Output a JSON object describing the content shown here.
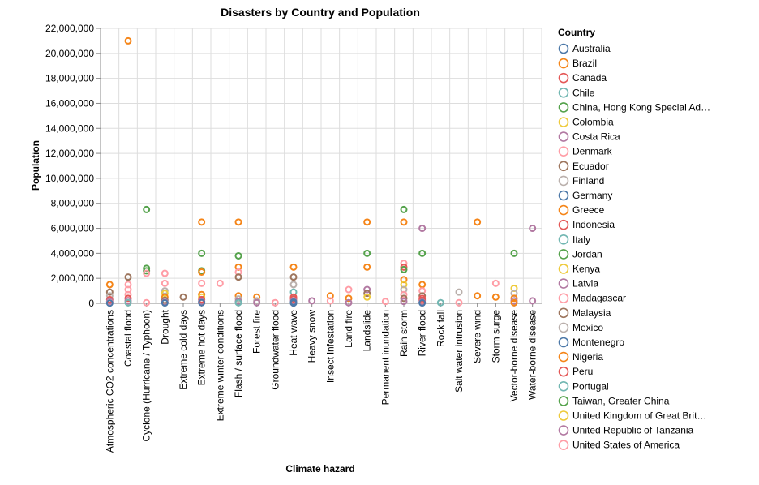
{
  "chart_data": {
    "type": "scatter",
    "title": "Disasters by Country and Population",
    "xlabel": "Climate hazard",
    "ylabel": "Population",
    "ylim": [
      0,
      22000000
    ],
    "y_ticks": [
      0,
      2000000,
      4000000,
      6000000,
      8000000,
      10000000,
      12000000,
      14000000,
      16000000,
      18000000,
      20000000,
      22000000
    ],
    "y_tick_labels": [
      "0",
      "2,000,000",
      "4,000,000",
      "6,000,000",
      "8,000,000",
      "10,000,000",
      "12,000,000",
      "14,000,000",
      "16,000,000",
      "18,000,000",
      "20,000,000",
      "22,000,000"
    ],
    "grid": true,
    "legend_position": "right",
    "legend_title": "Country",
    "categories": [
      "Atmospheric CO2 concentrations",
      "Coastal flood",
      "Cyclone (Hurricane / Typhoon)",
      "Drought",
      "Extreme cold days",
      "Extreme hot days",
      "Extreme winter conditions",
      "Flash / surface flood",
      "Forest fire",
      "Groundwater flood",
      "Heat wave",
      "Heavy snow",
      "Insect infestation",
      "Land fire",
      "Landslide",
      "Permanent inundation",
      "Rain storm",
      "River flood",
      "Rock fall",
      "Salt water intrusion",
      "Severe wind",
      "Storm surge",
      "Vector-borne disease",
      "Water-borne disease"
    ],
    "legend": [
      {
        "name": "Australia",
        "color": "#4c78a8"
      },
      {
        "name": "Brazil",
        "color": "#f58518"
      },
      {
        "name": "Canada",
        "color": "#e45756"
      },
      {
        "name": "Chile",
        "color": "#72b7b2"
      },
      {
        "name": "China, Hong Kong Special Ad…",
        "color": "#54a24b"
      },
      {
        "name": "Colombia",
        "color": "#eeca3b"
      },
      {
        "name": "Costa Rica",
        "color": "#b279a2"
      },
      {
        "name": "Denmark",
        "color": "#ff9da6"
      },
      {
        "name": "Ecuador",
        "color": "#9d755d"
      },
      {
        "name": "Finland",
        "color": "#bab0ac"
      },
      {
        "name": "Germany",
        "color": "#4c78a8"
      },
      {
        "name": "Greece",
        "color": "#f58518"
      },
      {
        "name": "Indonesia",
        "color": "#e45756"
      },
      {
        "name": "Italy",
        "color": "#72b7b2"
      },
      {
        "name": "Jordan",
        "color": "#54a24b"
      },
      {
        "name": "Kenya",
        "color": "#eeca3b"
      },
      {
        "name": "Latvia",
        "color": "#b279a2"
      },
      {
        "name": "Madagascar",
        "color": "#ff9da6"
      },
      {
        "name": "Malaysia",
        "color": "#9d755d"
      },
      {
        "name": "Mexico",
        "color": "#bab0ac"
      },
      {
        "name": "Montenegro",
        "color": "#4c78a8"
      },
      {
        "name": "Nigeria",
        "color": "#f58518"
      },
      {
        "name": "Peru",
        "color": "#e45756"
      },
      {
        "name": "Portugal",
        "color": "#72b7b2"
      },
      {
        "name": "Taiwan, Greater China",
        "color": "#54a24b"
      },
      {
        "name": "United Kingdom of Great Brit…",
        "color": "#eeca3b"
      },
      {
        "name": "United Republic of Tanzania",
        "color": "#b279a2"
      },
      {
        "name": "United States of America",
        "color": "#ff9da6"
      }
    ],
    "points": [
      {
        "x": "Atmospheric CO2 concentrations",
        "y": 1500000,
        "color": "#f58518"
      },
      {
        "x": "Atmospheric CO2 concentrations",
        "y": 900000,
        "color": "#9d755d"
      },
      {
        "x": "Atmospheric CO2 concentrations",
        "y": 600000,
        "color": "#bab0ac"
      },
      {
        "x": "Atmospheric CO2 concentrations",
        "y": 300000,
        "color": "#e45756"
      },
      {
        "x": "Atmospheric CO2 concentrations",
        "y": 150000,
        "color": "#b279a2"
      },
      {
        "x": "Atmospheric CO2 concentrations",
        "y": 50000,
        "color": "#ff9da6"
      },
      {
        "x": "Atmospheric CO2 concentrations",
        "y": 20000,
        "color": "#4c78a8"
      },
      {
        "x": "Coastal flood",
        "y": 21000000,
        "color": "#f58518"
      },
      {
        "x": "Coastal flood",
        "y": 2100000,
        "color": "#9d755d"
      },
      {
        "x": "Coastal flood",
        "y": 1500000,
        "color": "#ff9da6"
      },
      {
        "x": "Coastal flood",
        "y": 1100000,
        "color": "#ff9da6"
      },
      {
        "x": "Coastal flood",
        "y": 700000,
        "color": "#ff9da6"
      },
      {
        "x": "Coastal flood",
        "y": 400000,
        "color": "#e45756"
      },
      {
        "x": "Coastal flood",
        "y": 200000,
        "color": "#b279a2"
      },
      {
        "x": "Coastal flood",
        "y": 50000,
        "color": "#72b7b2"
      },
      {
        "x": "Cyclone (Hurricane / Typhoon)",
        "y": 7500000,
        "color": "#54a24b"
      },
      {
        "x": "Cyclone (Hurricane / Typhoon)",
        "y": 2800000,
        "color": "#54a24b"
      },
      {
        "x": "Cyclone (Hurricane / Typhoon)",
        "y": 2600000,
        "color": "#54a24b"
      },
      {
        "x": "Cyclone (Hurricane / Typhoon)",
        "y": 2400000,
        "color": "#ff9da6"
      },
      {
        "x": "Cyclone (Hurricane / Typhoon)",
        "y": 50000,
        "color": "#ff9da6"
      },
      {
        "x": "Drought",
        "y": 2400000,
        "color": "#ff9da6"
      },
      {
        "x": "Drought",
        "y": 1600000,
        "color": "#ff9da6"
      },
      {
        "x": "Drought",
        "y": 1000000,
        "color": "#bab0ac"
      },
      {
        "x": "Drought",
        "y": 800000,
        "color": "#eeca3b"
      },
      {
        "x": "Drought",
        "y": 500000,
        "color": "#f58518"
      },
      {
        "x": "Drought",
        "y": 250000,
        "color": "#9d755d"
      },
      {
        "x": "Drought",
        "y": 100000,
        "color": "#b279a2"
      },
      {
        "x": "Drought",
        "y": 30000,
        "color": "#4c78a8"
      },
      {
        "x": "Extreme cold days",
        "y": 500000,
        "color": "#9d755d"
      },
      {
        "x": "Extreme hot days",
        "y": 6500000,
        "color": "#f58518"
      },
      {
        "x": "Extreme hot days",
        "y": 4000000,
        "color": "#54a24b"
      },
      {
        "x": "Extreme hot days",
        "y": 2600000,
        "color": "#54a24b"
      },
      {
        "x": "Extreme hot days",
        "y": 2500000,
        "color": "#f58518"
      },
      {
        "x": "Extreme hot days",
        "y": 1600000,
        "color": "#ff9da6"
      },
      {
        "x": "Extreme hot days",
        "y": 700000,
        "color": "#f58518"
      },
      {
        "x": "Extreme hot days",
        "y": 500000,
        "color": "#eeca3b"
      },
      {
        "x": "Extreme hot days",
        "y": 300000,
        "color": "#e45756"
      },
      {
        "x": "Extreme hot days",
        "y": 150000,
        "color": "#b279a2"
      },
      {
        "x": "Extreme hot days",
        "y": 50000,
        "color": "#4c78a8"
      },
      {
        "x": "Extreme winter conditions",
        "y": 1600000,
        "color": "#ff9da6"
      },
      {
        "x": "Flash / surface flood",
        "y": 6500000,
        "color": "#f58518"
      },
      {
        "x": "Flash / surface flood",
        "y": 3800000,
        "color": "#54a24b"
      },
      {
        "x": "Flash / surface flood",
        "y": 2900000,
        "color": "#f58518"
      },
      {
        "x": "Flash / surface flood",
        "y": 2500000,
        "color": "#ff9da6"
      },
      {
        "x": "Flash / surface flood",
        "y": 2100000,
        "color": "#9d755d"
      },
      {
        "x": "Flash / surface flood",
        "y": 600000,
        "color": "#f58518"
      },
      {
        "x": "Flash / surface flood",
        "y": 350000,
        "color": "#bab0ac"
      },
      {
        "x": "Flash / surface flood",
        "y": 150000,
        "color": "#b279a2"
      },
      {
        "x": "Flash / surface flood",
        "y": 50000,
        "color": "#72b7b2"
      },
      {
        "x": "Forest fire",
        "y": 500000,
        "color": "#f58518"
      },
      {
        "x": "Forest fire",
        "y": 200000,
        "color": "#bab0ac"
      },
      {
        "x": "Forest fire",
        "y": 50000,
        "color": "#b279a2"
      },
      {
        "x": "Groundwater flood",
        "y": 50000,
        "color": "#ff9da6"
      },
      {
        "x": "Heat wave",
        "y": 2900000,
        "color": "#f58518"
      },
      {
        "x": "Heat wave",
        "y": 2100000,
        "color": "#9d755d"
      },
      {
        "x": "Heat wave",
        "y": 1500000,
        "color": "#bab0ac"
      },
      {
        "x": "Heat wave",
        "y": 900000,
        "color": "#72b7b2"
      },
      {
        "x": "Heat wave",
        "y": 500000,
        "color": "#e45756"
      },
      {
        "x": "Heat wave",
        "y": 350000,
        "color": "#e45756"
      },
      {
        "x": "Heat wave",
        "y": 200000,
        "color": "#b279a2"
      },
      {
        "x": "Heat wave",
        "y": 100000,
        "color": "#4c78a8"
      },
      {
        "x": "Heat wave",
        "y": 20000,
        "color": "#4c78a8"
      },
      {
        "x": "Heavy snow",
        "y": 200000,
        "color": "#b279a2"
      },
      {
        "x": "Insect infestation",
        "y": 600000,
        "color": "#f58518"
      },
      {
        "x": "Insect infestation",
        "y": 200000,
        "color": "#ff9da6"
      },
      {
        "x": "Land fire",
        "y": 1100000,
        "color": "#ff9da6"
      },
      {
        "x": "Land fire",
        "y": 400000,
        "color": "#f58518"
      },
      {
        "x": "Land fire",
        "y": 50000,
        "color": "#b279a2"
      },
      {
        "x": "Landslide",
        "y": 6500000,
        "color": "#f58518"
      },
      {
        "x": "Landslide",
        "y": 4000000,
        "color": "#54a24b"
      },
      {
        "x": "Landslide",
        "y": 2900000,
        "color": "#f58518"
      },
      {
        "x": "Landslide",
        "y": 1100000,
        "color": "#b279a2"
      },
      {
        "x": "Landslide",
        "y": 800000,
        "color": "#9d755d"
      },
      {
        "x": "Landslide",
        "y": 500000,
        "color": "#eeca3b"
      },
      {
        "x": "Permanent inundation",
        "y": 150000,
        "color": "#ff9da6"
      },
      {
        "x": "Rain storm",
        "y": 7500000,
        "color": "#54a24b"
      },
      {
        "x": "Rain storm",
        "y": 6500000,
        "color": "#f58518"
      },
      {
        "x": "Rain storm",
        "y": 3200000,
        "color": "#ff9da6"
      },
      {
        "x": "Rain storm",
        "y": 2900000,
        "color": "#e45756"
      },
      {
        "x": "Rain storm",
        "y": 2700000,
        "color": "#54a24b"
      },
      {
        "x": "Rain storm",
        "y": 1900000,
        "color": "#f58518"
      },
      {
        "x": "Rain storm",
        "y": 1500000,
        "color": "#eeca3b"
      },
      {
        "x": "Rain storm",
        "y": 1100000,
        "color": "#bab0ac"
      },
      {
        "x": "Rain storm",
        "y": 700000,
        "color": "#ff9da6"
      },
      {
        "x": "Rain storm",
        "y": 400000,
        "color": "#9d755d"
      },
      {
        "x": "Rain storm",
        "y": 150000,
        "color": "#b279a2"
      },
      {
        "x": "River flood",
        "y": 6000000,
        "color": "#b279a2"
      },
      {
        "x": "River flood",
        "y": 4000000,
        "color": "#54a24b"
      },
      {
        "x": "River flood",
        "y": 1500000,
        "color": "#f58518"
      },
      {
        "x": "River flood",
        "y": 1000000,
        "color": "#ff9da6"
      },
      {
        "x": "River flood",
        "y": 600000,
        "color": "#9d755d"
      },
      {
        "x": "River flood",
        "y": 400000,
        "color": "#e45756"
      },
      {
        "x": "River flood",
        "y": 250000,
        "color": "#e45756"
      },
      {
        "x": "River flood",
        "y": 100000,
        "color": "#b279a2"
      },
      {
        "x": "River flood",
        "y": 30000,
        "color": "#4c78a8"
      },
      {
        "x": "Rock fall",
        "y": 50000,
        "color": "#72b7b2"
      },
      {
        "x": "Salt water intrusion",
        "y": 900000,
        "color": "#bab0ac"
      },
      {
        "x": "Salt water intrusion",
        "y": 50000,
        "color": "#ff9da6"
      },
      {
        "x": "Severe wind",
        "y": 6500000,
        "color": "#f58518"
      },
      {
        "x": "Severe wind",
        "y": 600000,
        "color": "#f58518"
      },
      {
        "x": "Storm surge",
        "y": 1600000,
        "color": "#ff9da6"
      },
      {
        "x": "Storm surge",
        "y": 500000,
        "color": "#f58518"
      },
      {
        "x": "Vector-borne disease",
        "y": 4000000,
        "color": "#54a24b"
      },
      {
        "x": "Vector-borne disease",
        "y": 1200000,
        "color": "#eeca3b"
      },
      {
        "x": "Vector-borne disease",
        "y": 800000,
        "color": "#bab0ac"
      },
      {
        "x": "Vector-borne disease",
        "y": 400000,
        "color": "#f58518"
      },
      {
        "x": "Vector-borne disease",
        "y": 200000,
        "color": "#b279a2"
      },
      {
        "x": "Vector-borne disease",
        "y": 50000,
        "color": "#f58518"
      },
      {
        "x": "Water-borne disease",
        "y": 6000000,
        "color": "#b279a2"
      },
      {
        "x": "Water-borne disease",
        "y": 200000,
        "color": "#b279a2"
      }
    ]
  }
}
